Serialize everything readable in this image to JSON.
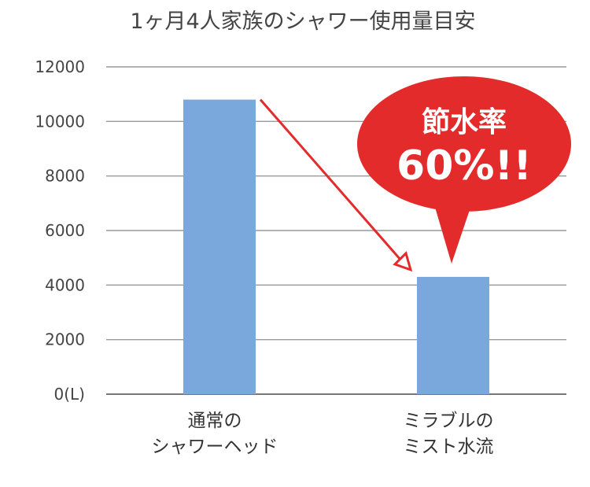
{
  "chart_data": {
    "type": "bar",
    "title": "1ヶ月4人家族のシャワー使用量目安",
    "categories": [
      [
        "通常の",
        "シャワーヘッド"
      ],
      [
        "ミラブルの",
        "ミスト水流"
      ]
    ],
    "values": [
      10800,
      4300
    ],
    "ylim": [
      0,
      12000
    ],
    "yticks": [
      0,
      2000,
      4000,
      6000,
      8000,
      10000,
      12000
    ],
    "ytick_labels": [
      "0(L)",
      "2000",
      "4000",
      "6000",
      "8000",
      "10000",
      "12000"
    ],
    "grid": true,
    "bar_color": "#7aa8dc",
    "annotation": {
      "line1": "節水率",
      "line2": "60%!!",
      "color": "#e42b2b"
    },
    "arrow_color": "#e42b2b"
  }
}
